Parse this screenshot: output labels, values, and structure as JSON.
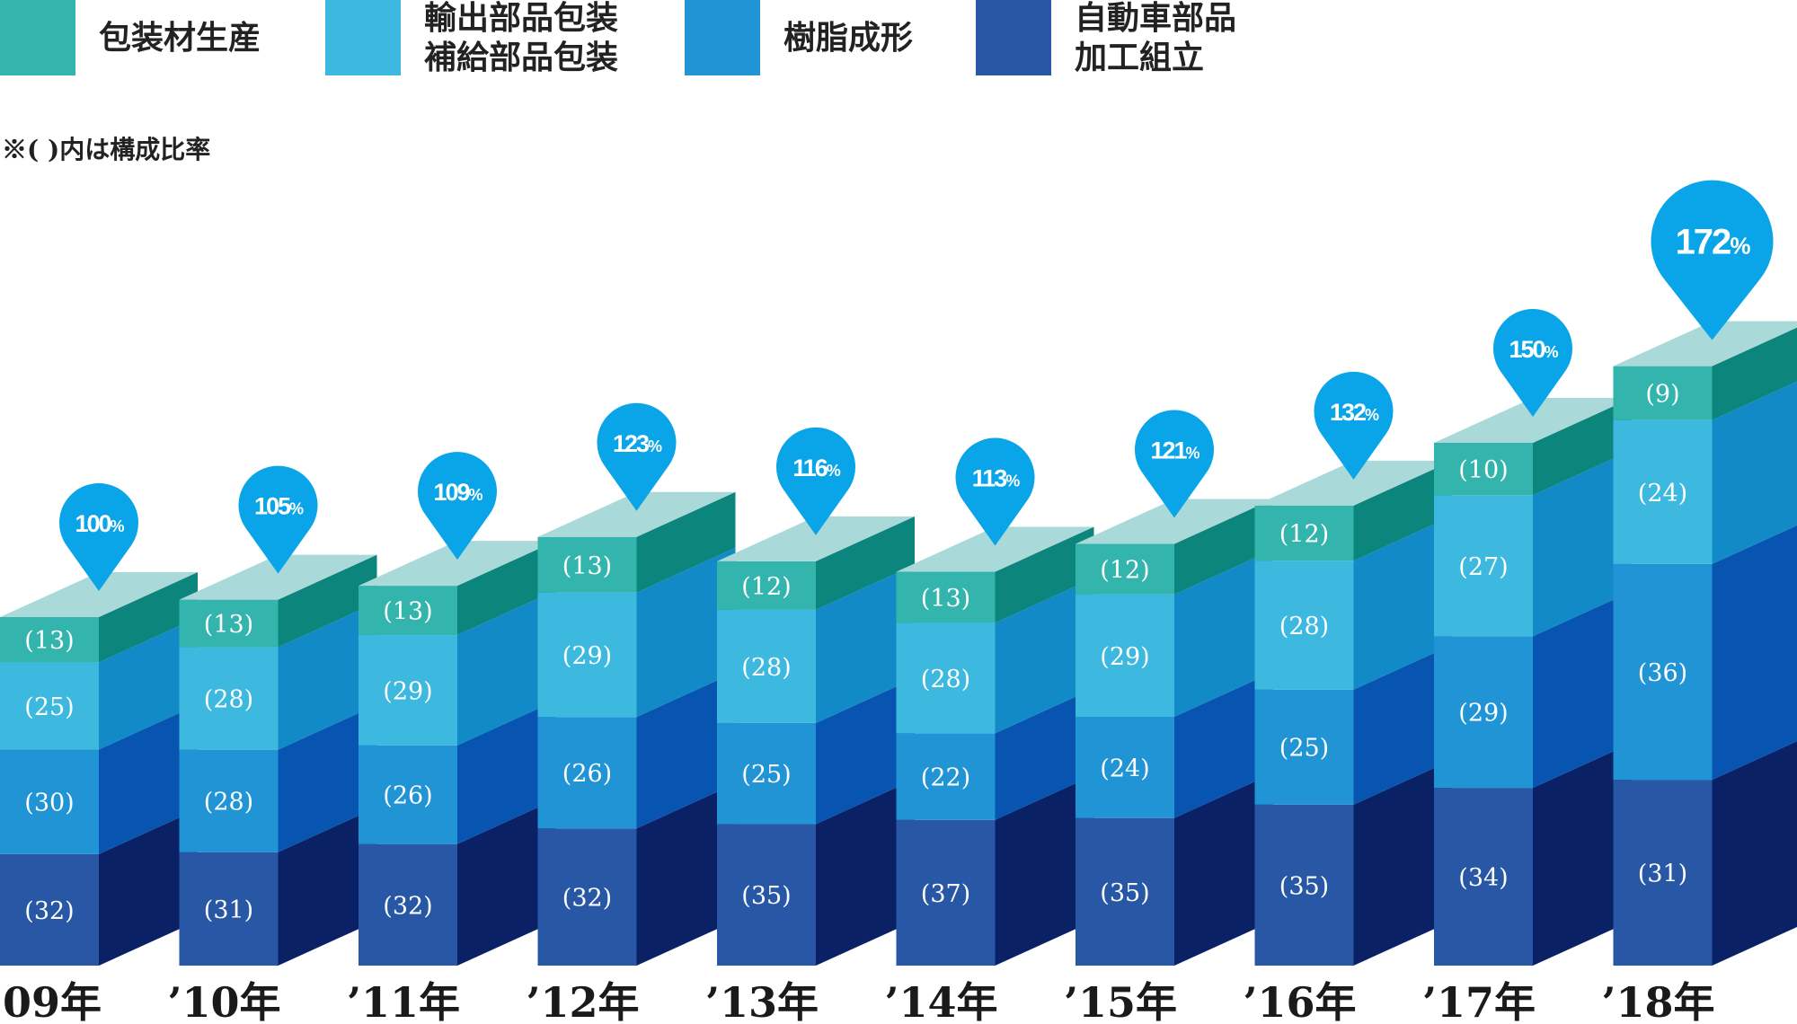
{
  "legend": [
    {
      "label": "包装材生産",
      "color": "#33b5ad"
    },
    {
      "label": "輸出部品包装\n補給部品包装",
      "color": "#3db9e0"
    },
    {
      "label": "樹脂成形",
      "color": "#2194d6"
    },
    {
      "label": "自動車部品\n加工組立",
      "color": "#2857a5"
    }
  ],
  "note": "※( )内は構成比率",
  "chart_data": {
    "type": "bar",
    "stacked": true,
    "categories": [
      "’09年",
      "’10年",
      "’11年",
      "’12年",
      "’13年",
      "’14年",
      "’15年",
      "’16年",
      "’17年",
      "’18年"
    ],
    "index_values": [
      100,
      105,
      109,
      123,
      116,
      113,
      121,
      132,
      150,
      172
    ],
    "index_unit": "%",
    "series": [
      {
        "name": "自動車部品\n加工組立",
        "values": [
          32,
          31,
          32,
          32,
          35,
          37,
          35,
          35,
          34,
          31
        ],
        "color": "#2857a5",
        "side_color": "#0b2166"
      },
      {
        "name": "樹脂成形",
        "values": [
          30,
          28,
          26,
          26,
          25,
          22,
          24,
          25,
          29,
          36
        ],
        "color": "#2194d6",
        "side_color": "#0755b0"
      },
      {
        "name": "輸出部品包装\n補給部品包装",
        "values": [
          25,
          28,
          29,
          29,
          28,
          28,
          29,
          28,
          27,
          24
        ],
        "color": "#3db9e0",
        "side_color": "#138ac8"
      },
      {
        "name": "包装材生産",
        "values": [
          13,
          13,
          13,
          13,
          12,
          13,
          12,
          12,
          10,
          9
        ],
        "color": "#33b5ad",
        "side_color": "#0c857c"
      }
    ],
    "top_color": "#aad9d9",
    "pin_color": "#0aa5e8",
    "value_format": "(v)"
  }
}
